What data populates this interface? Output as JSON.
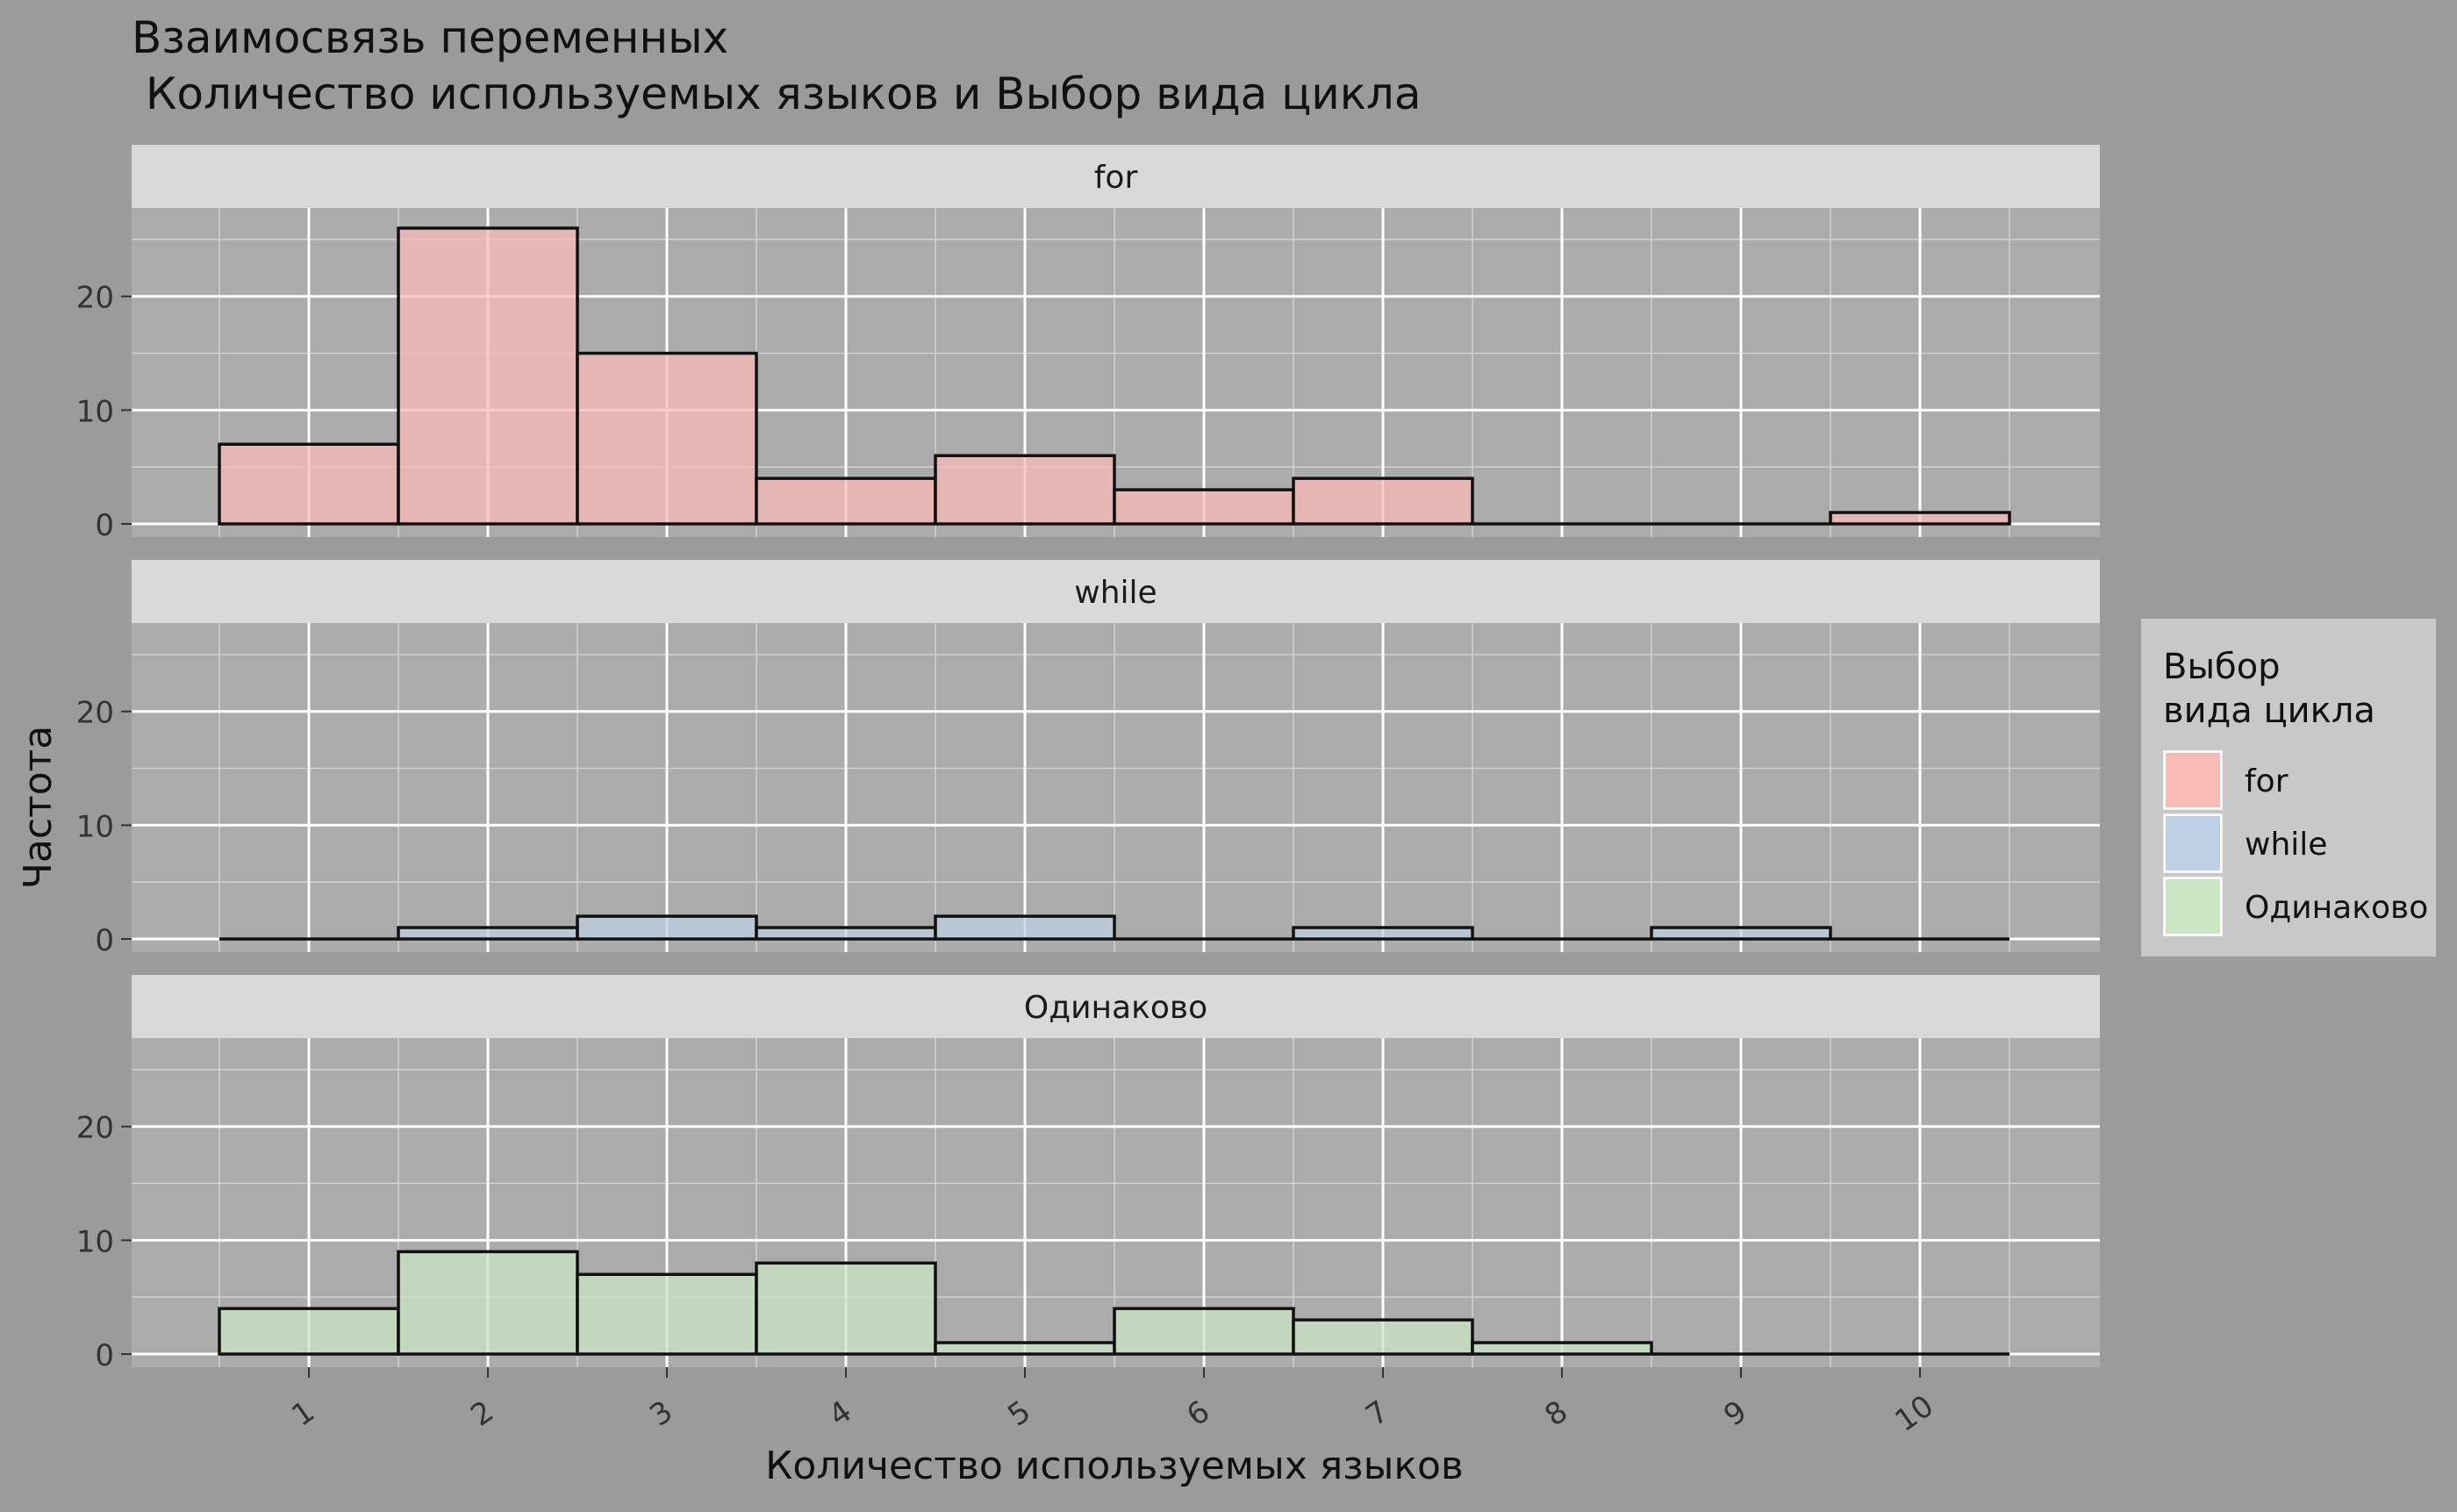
{
  "chart_data": {
    "type": "bar",
    "title_line1": "Взаимосвязь переменных",
    "title_line2": " Количество используемых языков и Выбор вида цикла",
    "xlabel": "Количество используемых языков",
    "ylabel": "Частота",
    "categories": [
      "1",
      "2",
      "3",
      "4",
      "5",
      "6",
      "7",
      "8",
      "9",
      "10"
    ],
    "ylim": [
      0,
      27
    ],
    "yticks": [
      0,
      10,
      20
    ],
    "ytick_labels": [
      "0",
      "10",
      "20"
    ],
    "grid": true,
    "legend": {
      "title_line1": "Выбор",
      "title_line2": "вида цикла",
      "placement": "right"
    },
    "series": [
      {
        "name": "for",
        "values": [
          7,
          26,
          15,
          4,
          6,
          3,
          4,
          0,
          0,
          1
        ],
        "color": "#f8bab5"
      },
      {
        "name": "while",
        "values": [
          0,
          1,
          2,
          1,
          2,
          0,
          1,
          0,
          1,
          0
        ],
        "color": "#bdd0e3"
      },
      {
        "name": "Одинаково",
        "values": [
          4,
          9,
          7,
          8,
          1,
          4,
          3,
          1,
          0,
          0
        ],
        "color": "#cae6c4"
      }
    ]
  }
}
